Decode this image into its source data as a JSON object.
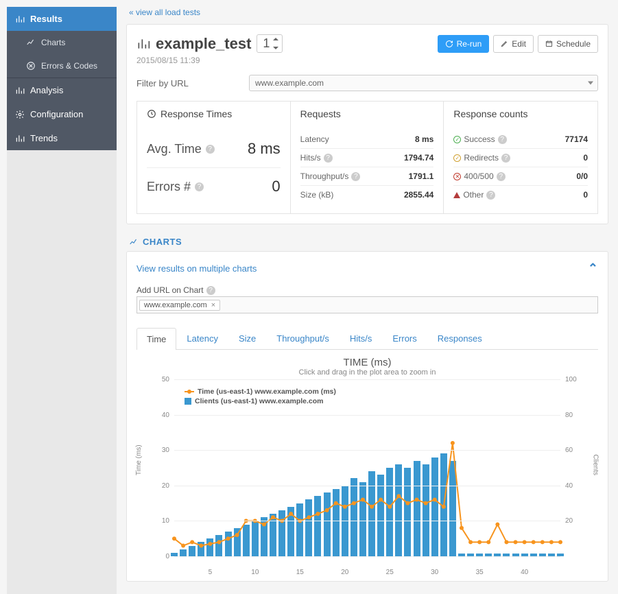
{
  "sidebar": {
    "items": [
      {
        "key": "results",
        "label": "Results",
        "icon": "bar",
        "class": "active top"
      },
      {
        "key": "charts",
        "label": "Charts",
        "icon": "line",
        "class": "sub"
      },
      {
        "key": "errors",
        "label": "Errors & Codes",
        "icon": "err",
        "class": "sub"
      },
      {
        "key": "analysis",
        "label": "Analysis",
        "icon": "bar",
        "class": "top gear"
      },
      {
        "key": "configuration",
        "label": "Configuration",
        "icon": "gear",
        "class": "top"
      },
      {
        "key": "trends",
        "label": "Trends",
        "icon": "bar",
        "class": "top"
      }
    ]
  },
  "backlink": "« view all load tests",
  "header": {
    "title": "example_test",
    "run_number": "1",
    "timestamp": "2015/08/15 11:39",
    "buttons": {
      "rerun": "Re-run",
      "edit": "Edit",
      "schedule": "Schedule"
    }
  },
  "filter": {
    "label": "Filter by URL",
    "value": "www.example.com"
  },
  "stats": {
    "response_times": {
      "header": "Response Times",
      "avg_label": "Avg. Time",
      "avg_value": "8 ms",
      "err_label": "Errors #",
      "err_value": "0"
    },
    "requests": {
      "header": "Requests",
      "rows": [
        {
          "label": "Latency",
          "value": "8 ms"
        },
        {
          "label": "Hits/s",
          "value": "1794.74",
          "help": true
        },
        {
          "label": "Throughput/s",
          "value": "1791.1",
          "help": true
        },
        {
          "label": "Size (kB)",
          "value": "2855.44"
        }
      ]
    },
    "response_counts": {
      "header": "Response counts",
      "rows": [
        {
          "icon": "ok",
          "color": "#4caf50",
          "label": "Success",
          "value": "77174"
        },
        {
          "icon": "ok",
          "color": "#d0a030",
          "label": "Redirects",
          "value": "0"
        },
        {
          "icon": "bad",
          "color": "#c0392b",
          "label": "400/500",
          "value": "0/0"
        },
        {
          "icon": "warn",
          "color": "#8b3a3a",
          "label": "Other",
          "value": "0"
        }
      ]
    }
  },
  "charts_section": {
    "header": "CHARTS",
    "multi_link": "View results on multiple charts",
    "addurl_label": "Add URL on Chart",
    "tag": "www.example.com"
  },
  "tabs": [
    {
      "key": "time",
      "label": "Time",
      "active": true
    },
    {
      "key": "latency",
      "label": "Latency"
    },
    {
      "key": "size",
      "label": "Size"
    },
    {
      "key": "throughput",
      "label": "Throughput/s"
    },
    {
      "key": "hits",
      "label": "Hits/s"
    },
    {
      "key": "errors",
      "label": "Errors"
    },
    {
      "key": "responses",
      "label": "Responses"
    }
  ],
  "chart": {
    "title": "TIME (ms)",
    "sub": "Click and drag in the plot area to zoom in",
    "legend": {
      "line": "Time (us-east-1) www.example.com (ms)",
      "bar": "Clients (us-east-1) www.example.com"
    },
    "axis": {
      "y_left_label": "Time (ms)",
      "y_right_label": "Clients",
      "y_left": {
        "min": 0,
        "max": 50,
        "step": 10
      },
      "y_right": {
        "min": 0,
        "max": 100,
        "step": 20
      },
      "x": {
        "min": 1,
        "max": 44,
        "tick_step": 5
      }
    },
    "colors": {
      "line": "#f7941e",
      "bar": "#3a98d0",
      "grid": "#eeeeee",
      "text": "#888888"
    },
    "bar_values": [
      2,
      4,
      6,
      8,
      10,
      12,
      14,
      16,
      18,
      20,
      22,
      24,
      26,
      28,
      30,
      32,
      34,
      36,
      38,
      40,
      44,
      42,
      48,
      46,
      50,
      52,
      50,
      54,
      52,
      56,
      58,
      54,
      1.5,
      1.5,
      1.5,
      1.5,
      1.5,
      1.5,
      1.5,
      1.5,
      1.5,
      1.5,
      1.5,
      1.5
    ],
    "line_values": [
      5,
      3,
      4,
      3,
      3.5,
      4,
      5,
      6,
      10,
      10,
      9,
      11,
      10,
      12,
      10,
      11,
      12,
      13,
      15,
      14,
      15,
      16,
      14,
      16,
      14,
      17,
      15,
      16,
      15,
      16,
      14,
      32,
      8,
      4,
      4,
      4,
      9,
      4,
      4,
      4,
      4,
      4,
      4,
      4
    ]
  }
}
